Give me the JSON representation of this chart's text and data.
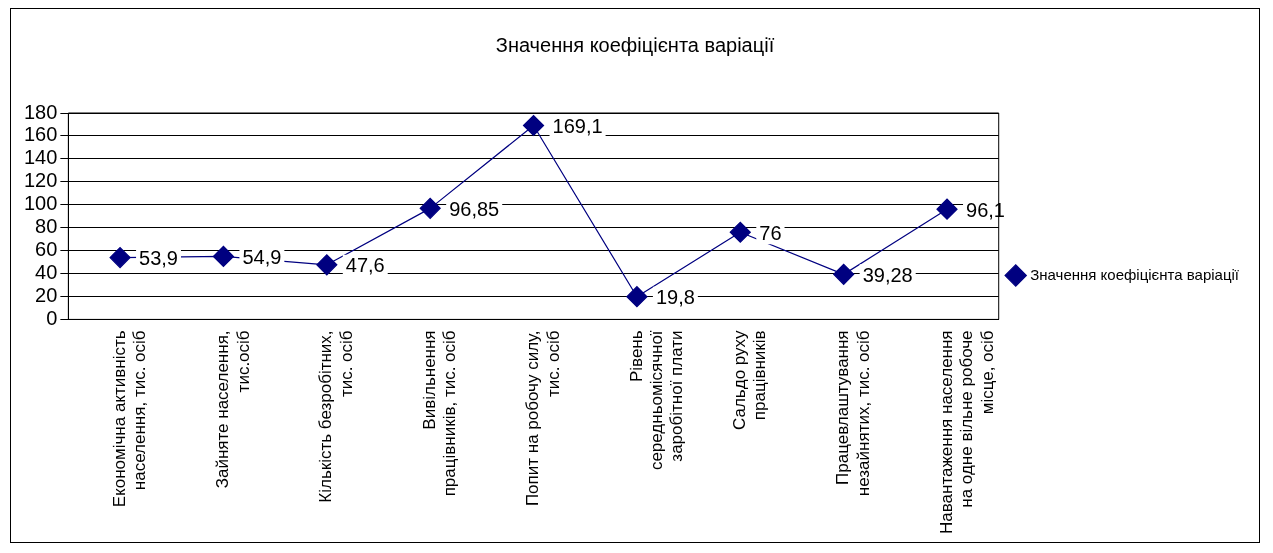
{
  "chart_data": {
    "type": "line",
    "title": "Значення коефіцієнта варіації",
    "categories": [
      "Економічна активність населення, тис. осіб",
      "Зайняте населення, тис.осіб",
      "Кількість безробітних, тис. осіб",
      "Вивільнення працівників, тис. осіб",
      "Попит на робочу силу, тис. осіб",
      "Рівень середньомісячної заробітної плати",
      "Сальдо руху працівників",
      "Працевлаштування незайнятих, тис. осіб",
      "Навантаження населення на одне вільне робоче місце, осіб"
    ],
    "series": [
      {
        "name": "Значення коефіцієнта варіації",
        "color": "#000080",
        "values": [
          53.9,
          54.9,
          47.6,
          96.85,
          169.1,
          19.8,
          76,
          39.28,
          96.1
        ],
        "value_labels": [
          "53,9",
          "54,9",
          "47,6",
          "96,85",
          "169,1",
          "19,8",
          "76",
          "39,28",
          "96,1"
        ]
      }
    ],
    "ylim": [
      0,
      180
    ],
    "yticks": [
      0,
      20,
      40,
      60,
      80,
      100,
      120,
      140,
      160,
      180
    ],
    "grid": "y",
    "legend": "right",
    "marker": "diamond",
    "line_style": "solid"
  }
}
